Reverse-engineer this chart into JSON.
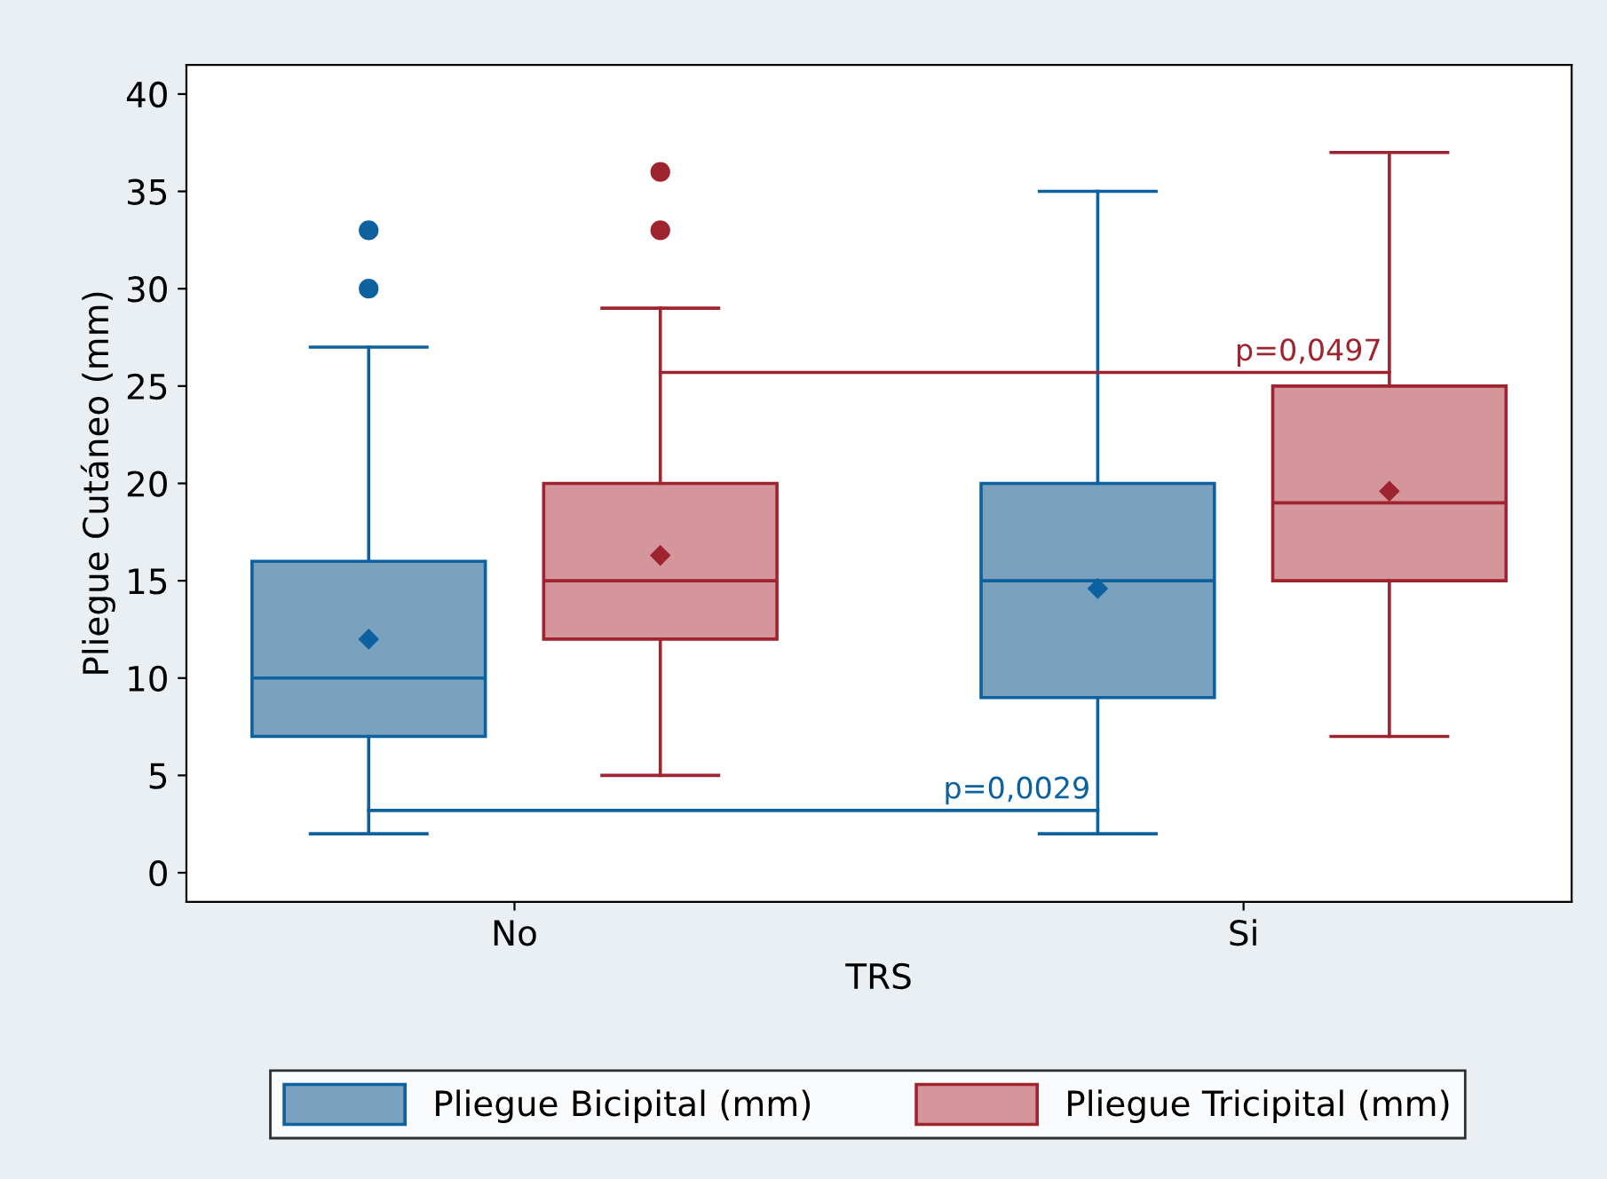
{
  "chart_data": {
    "type": "box",
    "xlabel": "TRS",
    "ylabel": "Pliegue Cutáneo (mm)",
    "categories": [
      "No",
      "Si"
    ],
    "ylim": [
      -1.5,
      41.5
    ],
    "yticks": [
      0,
      5,
      10,
      15,
      20,
      25,
      30,
      35,
      40
    ],
    "grid": false,
    "legend": "bottom",
    "series": [
      {
        "name": "Pliegue Bicipital (mm)",
        "color": "#7aa1bd",
        "boxes": [
          {
            "low": 2,
            "q1": 7,
            "median": 10,
            "q3": 16,
            "high": 27,
            "mean": 12,
            "outliers": [
              30,
              33
            ]
          },
          {
            "low": 2,
            "q1": 9,
            "median": 15,
            "q3": 20,
            "high": 35,
            "mean": 14.6
          }
        ]
      },
      {
        "name": "Pliegue Tricipital (mm)",
        "color": "#d4959b",
        "boxes": [
          {
            "low": 5,
            "q1": 12,
            "median": 15,
            "q3": 20,
            "high": 29,
            "mean": 16.3,
            "outliers": [
              33,
              36
            ]
          },
          {
            "low": 7,
            "q1": 15,
            "median": 19,
            "q3": 25,
            "high": 37,
            "mean": 19.6
          }
        ]
      }
    ],
    "annotations": [
      "p=0,0029",
      "p=0,0497"
    ]
  }
}
